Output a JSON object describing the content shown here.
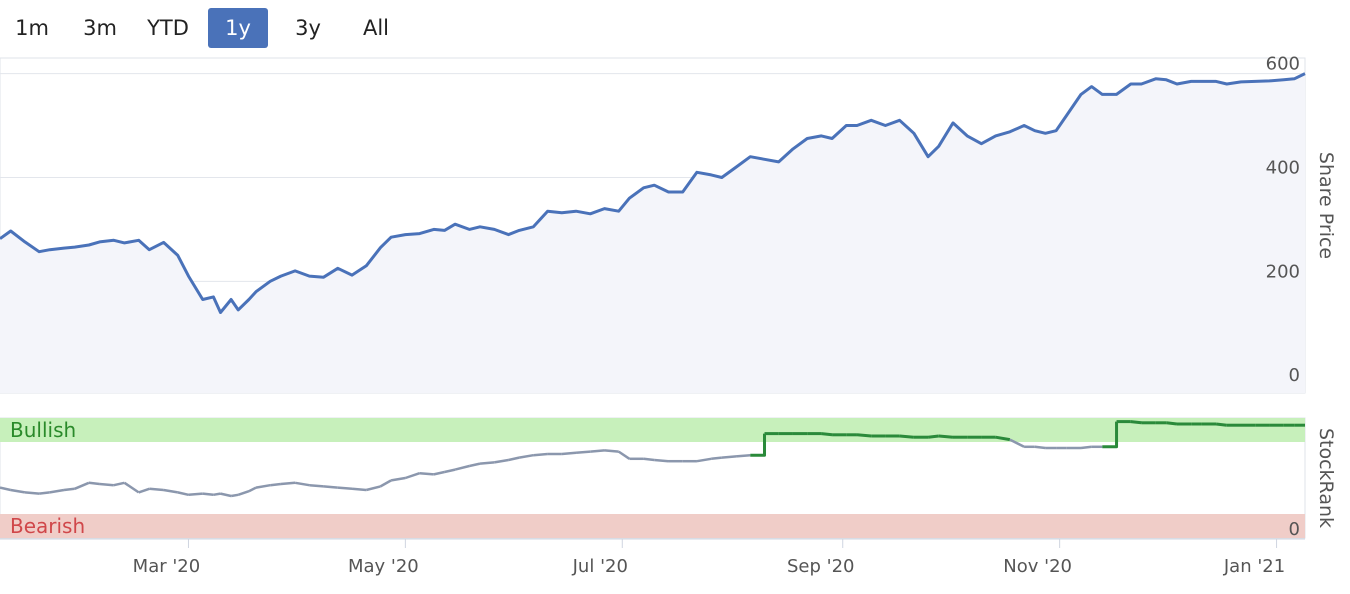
{
  "range_selector": {
    "buttons": [
      "1m",
      "3m",
      "YTD",
      "1y",
      "3y",
      "All"
    ],
    "active": "1y"
  },
  "colors": {
    "price_line": "#4a72b9",
    "price_fill": "#f4f5fa",
    "rank_line": "#8b97ad",
    "bullish_band": "#c7f0bb",
    "bearish_band": "#f0cdc8",
    "bullish_text": "#2a8a2a",
    "bearish_text": "#d0474a",
    "rank_line_bullish": "#2a8a3a"
  },
  "chart_data": [
    {
      "type": "line",
      "ylabel": "Share Price",
      "yticks": [
        0,
        200,
        400,
        600
      ],
      "ylim": [
        -15,
        630
      ],
      "grid": true,
      "x_ticks": [
        "Mar '20",
        "May '20",
        "Jul '20",
        "Sep '20",
        "Nov '20",
        "Jan '21"
      ],
      "x_tick_dates": [
        "2020-03-01",
        "2020-05-01",
        "2020-07-01",
        "2020-09-01",
        "2020-11-01",
        "2021-01-01"
      ],
      "xlim": [
        "2020-01-08",
        "2021-01-09"
      ],
      "series": [
        {
          "x": [
            "2020-01-08",
            "2020-01-11",
            "2020-01-15",
            "2020-01-19",
            "2020-01-22",
            "2020-01-26",
            "2020-01-29",
            "2020-02-02",
            "2020-02-05",
            "2020-02-09",
            "2020-02-12",
            "2020-02-16",
            "2020-02-19",
            "2020-02-23",
            "2020-02-27",
            "2020-03-01",
            "2020-03-05",
            "2020-03-08",
            "2020-03-10",
            "2020-03-13",
            "2020-03-15",
            "2020-03-18",
            "2020-03-20",
            "2020-03-24",
            "2020-03-27",
            "2020-03-31",
            "2020-04-04",
            "2020-04-08",
            "2020-04-12",
            "2020-04-16",
            "2020-04-20",
            "2020-04-24",
            "2020-04-27",
            "2020-05-01",
            "2020-05-05",
            "2020-05-09",
            "2020-05-12",
            "2020-05-15",
            "2020-05-19",
            "2020-05-22",
            "2020-05-26",
            "2020-05-30",
            "2020-06-02",
            "2020-06-06",
            "2020-06-10",
            "2020-06-14",
            "2020-06-18",
            "2020-06-22",
            "2020-06-26",
            "2020-06-30",
            "2020-07-03",
            "2020-07-07",
            "2020-07-10",
            "2020-07-14",
            "2020-07-18",
            "2020-07-22",
            "2020-07-26",
            "2020-07-29",
            "2020-08-02",
            "2020-08-06",
            "2020-08-10",
            "2020-08-14",
            "2020-08-18",
            "2020-08-22",
            "2020-08-26",
            "2020-08-29",
            "2020-09-02",
            "2020-09-05",
            "2020-09-09",
            "2020-09-13",
            "2020-09-17",
            "2020-09-21",
            "2020-09-25",
            "2020-09-28",
            "2020-10-02",
            "2020-10-06",
            "2020-10-10",
            "2020-10-14",
            "2020-10-18",
            "2020-10-22",
            "2020-10-25",
            "2020-10-28",
            "2020-10-31",
            "2020-11-03",
            "2020-11-07",
            "2020-11-10",
            "2020-11-13",
            "2020-11-17",
            "2020-11-21",
            "2020-11-24",
            "2020-11-28",
            "2020-12-01",
            "2020-12-04",
            "2020-12-08",
            "2020-12-11",
            "2020-12-15",
            "2020-12-18",
            "2020-12-22",
            "2020-12-26",
            "2020-12-30",
            "2021-01-03",
            "2021-01-06",
            "2021-01-09"
          ],
          "y": [
            282,
            297,
            276,
            257,
            261,
            264,
            266,
            270,
            276,
            279,
            274,
            279,
            261,
            275,
            250,
            210,
            165,
            170,
            140,
            165,
            145,
            165,
            180,
            200,
            210,
            220,
            210,
            208,
            225,
            212,
            230,
            265,
            285,
            290,
            292,
            300,
            298,
            310,
            300,
            305,
            300,
            290,
            298,
            305,
            335,
            332,
            335,
            330,
            340,
            335,
            360,
            380,
            385,
            372,
            372,
            410,
            405,
            400,
            420,
            440,
            435,
            430,
            455,
            475,
            480,
            475,
            500,
            500,
            510,
            500,
            510,
            485,
            440,
            460,
            505,
            480,
            465,
            480,
            488,
            500,
            490,
            485,
            490,
            520,
            560,
            575,
            560,
            560,
            580,
            580,
            590,
            588,
            580,
            585,
            585,
            585,
            580,
            584,
            585,
            586,
            588,
            590,
            600
          ]
        }
      ]
    },
    {
      "type": "line",
      "ylabel": "StockRank",
      "yticks": [
        0
      ],
      "bands": [
        {
          "name": "Bullish",
          "from": 80,
          "to": 100
        },
        {
          "name": "Bearish",
          "from": 0,
          "to": 20
        }
      ],
      "ylim": [
        0,
        100
      ],
      "series": [
        {
          "x": [
            "2020-01-08",
            "2020-01-11",
            "2020-01-15",
            "2020-01-19",
            "2020-01-22",
            "2020-01-26",
            "2020-01-29",
            "2020-02-02",
            "2020-02-05",
            "2020-02-09",
            "2020-02-12",
            "2020-02-16",
            "2020-02-19",
            "2020-02-23",
            "2020-02-27",
            "2020-03-01",
            "2020-03-05",
            "2020-03-08",
            "2020-03-10",
            "2020-03-13",
            "2020-03-15",
            "2020-03-18",
            "2020-03-20",
            "2020-03-24",
            "2020-03-27",
            "2020-03-31",
            "2020-04-04",
            "2020-04-08",
            "2020-04-12",
            "2020-04-16",
            "2020-04-20",
            "2020-04-24",
            "2020-04-27",
            "2020-05-01",
            "2020-05-05",
            "2020-05-09",
            "2020-05-12",
            "2020-05-15",
            "2020-05-19",
            "2020-05-22",
            "2020-05-26",
            "2020-05-30",
            "2020-06-02",
            "2020-06-06",
            "2020-06-10",
            "2020-06-14",
            "2020-06-18",
            "2020-06-22",
            "2020-06-26",
            "2020-06-30",
            "2020-07-03",
            "2020-07-07",
            "2020-07-10",
            "2020-07-14",
            "2020-07-18",
            "2020-07-22",
            "2020-07-26",
            "2020-07-29",
            "2020-08-02",
            "2020-08-06",
            "2020-08-10",
            "2020-08-14",
            "2020-08-18",
            "2020-08-22",
            "2020-08-26",
            "2020-08-29",
            "2020-09-02",
            "2020-09-05",
            "2020-09-09",
            "2020-09-13",
            "2020-09-17",
            "2020-09-21",
            "2020-09-25",
            "2020-09-28",
            "2020-10-02",
            "2020-10-06",
            "2020-10-10",
            "2020-10-14",
            "2020-10-18",
            "2020-10-22",
            "2020-10-25",
            "2020-10-28",
            "2020-10-31",
            "2020-11-03",
            "2020-11-07",
            "2020-11-10",
            "2020-11-13",
            "2020-11-17",
            "2020-11-21",
            "2020-11-24",
            "2020-11-28",
            "2020-12-01",
            "2020-12-04",
            "2020-12-08",
            "2020-12-11",
            "2020-12-15",
            "2020-12-18",
            "2020-12-22",
            "2020-12-26",
            "2020-12-30",
            "2021-01-03",
            "2021-01-06",
            "2021-01-09"
          ],
          "y": [
            42,
            40,
            38,
            37,
            38,
            40,
            41,
            46,
            45,
            44,
            46,
            38,
            41,
            40,
            38,
            36,
            37,
            36,
            37,
            35,
            36,
            39,
            42,
            44,
            45,
            46,
            44,
            43,
            42,
            41,
            40,
            43,
            48,
            50,
            54,
            53,
            55,
            57,
            60,
            62,
            63,
            65,
            67,
            69,
            70,
            70,
            71,
            72,
            73,
            72,
            66,
            66,
            65,
            64,
            64,
            64,
            66,
            67,
            68,
            69,
            87,
            87,
            87,
            87,
            87,
            86,
            86,
            86,
            85,
            85,
            85,
            84,
            84,
            85,
            84,
            84,
            84,
            84,
            82,
            76,
            76,
            75,
            75,
            75,
            75,
            76,
            76,
            97,
            97,
            96,
            96,
            96,
            95,
            95,
            95,
            95,
            94,
            94,
            94,
            94,
            94,
            94,
            94
          ]
        }
      ]
    }
  ]
}
